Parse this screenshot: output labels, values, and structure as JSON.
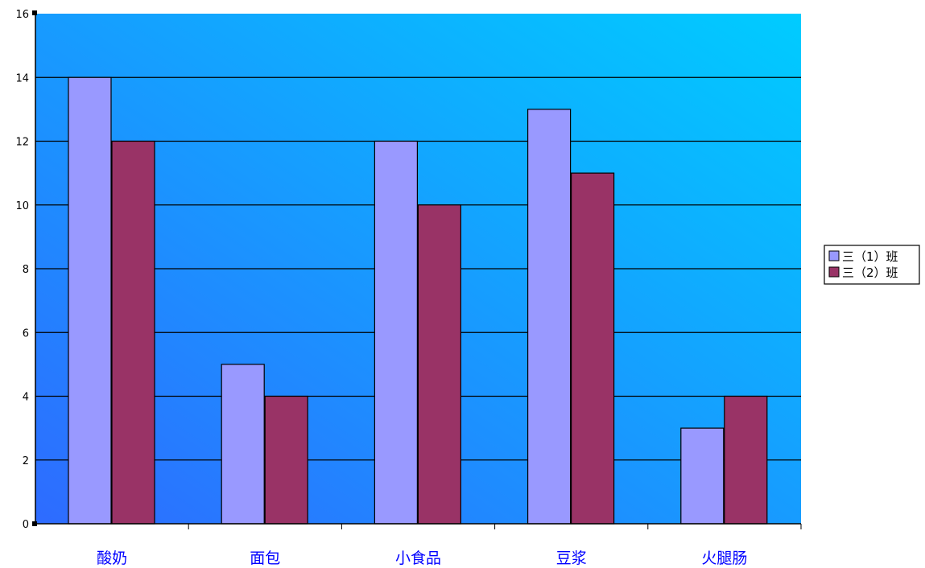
{
  "chart_data": {
    "type": "bar",
    "categories": [
      "酸奶",
      "面包",
      "小食品",
      "豆浆",
      "火腿肠"
    ],
    "series": [
      {
        "name": "三（1）班",
        "values": [
          14,
          5,
          12,
          13,
          3
        ],
        "color": "#9999ff"
      },
      {
        "name": "三（2）班",
        "values": [
          12,
          4,
          10,
          11,
          4
        ],
        "color": "#993366"
      }
    ],
    "title": "",
    "xlabel": "",
    "ylabel": "",
    "ylim": [
      0,
      16
    ],
    "yticks": [
      "0",
      "2",
      "4",
      "6",
      "8",
      "10",
      "12",
      "14",
      "16"
    ],
    "grid": true,
    "legend_position": "right",
    "colors": {
      "plot_bg_start": "#2e6bff",
      "plot_bg_end": "#00ccff",
      "x_label_color": "#0000ff",
      "grid_color": "#000000"
    }
  }
}
